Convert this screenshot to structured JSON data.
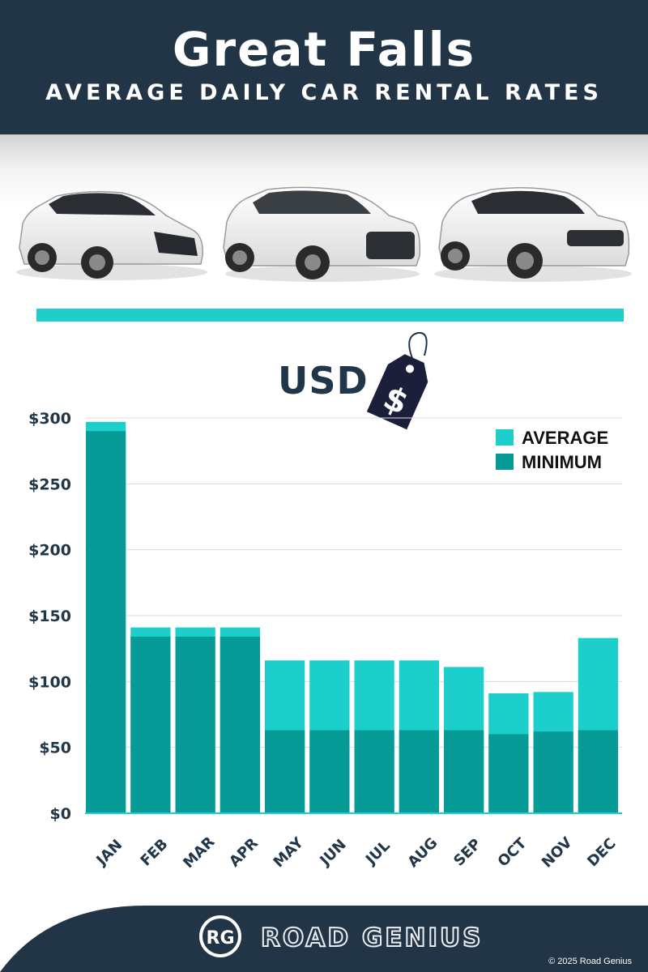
{
  "header": {
    "title": "Great Falls",
    "subtitle": "AVERAGE DAILY CAR RENTAL RATES"
  },
  "currency_label": "USD",
  "tag_icon": "price-tag-dollar",
  "tag_symbol": "$",
  "colors": {
    "header_bg": "#213547",
    "accent": "#1ccfcb",
    "average": "#1ccfcb",
    "minimum": "#079b97",
    "text_dark": "#22364a"
  },
  "chart_data": {
    "type": "bar",
    "stacked": "overlay",
    "categories": [
      "JAN",
      "FEB",
      "MAR",
      "APR",
      "MAY",
      "JUN",
      "JUL",
      "AUG",
      "SEP",
      "OCT",
      "NOV",
      "DEC"
    ],
    "series": [
      {
        "name": "AVERAGE",
        "color": "#1ccfcb",
        "values": [
          297,
          141,
          141,
          141,
          116,
          116,
          116,
          116,
          111,
          91,
          92,
          133
        ]
      },
      {
        "name": "MINIMUM",
        "color": "#079b97",
        "values": [
          290,
          134,
          134,
          134,
          63,
          63,
          63,
          63,
          63,
          60,
          62,
          63
        ]
      }
    ],
    "y_ticks": [
      "$0",
      "$50",
      "$100",
      "$150",
      "$200",
      "$250",
      "$300"
    ],
    "y_tick_values": [
      0,
      50,
      100,
      150,
      200,
      250,
      300
    ],
    "ylim": [
      0,
      300
    ],
    "grid": true,
    "legend_position": "top-right"
  },
  "footer": {
    "logo_initials": "RG",
    "brand": "ROAD GENIUS",
    "copyright": "© 2025 Road Genius"
  }
}
